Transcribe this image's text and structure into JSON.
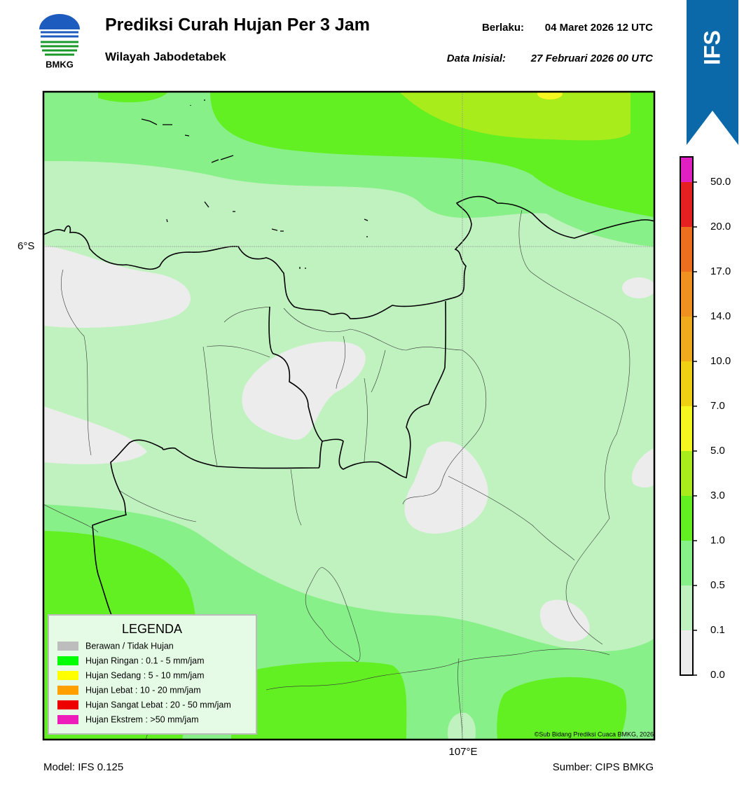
{
  "header": {
    "logo_text": "BMKG",
    "title": "Prediksi Curah Hujan Per 3 Jam",
    "subtitle": "Wilayah Jabodetabek",
    "valid_label": "Berlaku:",
    "valid": "04 Maret 2026 12 UTC",
    "init_label": "Data Inisial:",
    "init": "27 Februari 2026 00 UTC"
  },
  "badge": "IFS",
  "map": {
    "lat_label": "6°S",
    "lon_label": "107°E",
    "copyright": "©Sub Bidang Prediksi Cuaca BMKG, 2026"
  },
  "legend": {
    "title": "LEGENDA",
    "items": [
      {
        "label": "Berawan / Tidak Hujan",
        "color": "#bdbdbd"
      },
      {
        "label": "Hujan Ringan : 0.1 - 5 mm/jam",
        "color": "#00ff00"
      },
      {
        "label": "Hujan Sedang : 5 - 10 mm/jam",
        "color": "#ffff00"
      },
      {
        "label": "Hujan Lebat : 10 - 20 mm/jam",
        "color": "#ffa000"
      },
      {
        "label": "Hujan Sangat Lebat : 20 - 50 mm/jam",
        "color": "#ee0000"
      },
      {
        "label": "Hujan Ekstrem : >50 mm/jam",
        "color": "#ee1cbb"
      }
    ]
  },
  "colorbar": {
    "ticks": [
      "0.0",
      "0.1",
      "0.5",
      "1.0",
      "3.0",
      "5.0",
      "7.0",
      "10.0",
      "14.0",
      "17.0",
      "20.0",
      "50.0"
    ],
    "colors": [
      "#ececec",
      "#c0f2c0",
      "#88f088",
      "#62f022",
      "#a8ec1c",
      "#f6f620",
      "#f0d012",
      "#f0aa1e",
      "#f09020",
      "#ee6e20",
      "#e62020"
    ],
    "extend_color": "#e020c0"
  },
  "footer": {
    "model": "Model: IFS 0.125",
    "source": "Sumber: CIPS BMKG"
  }
}
